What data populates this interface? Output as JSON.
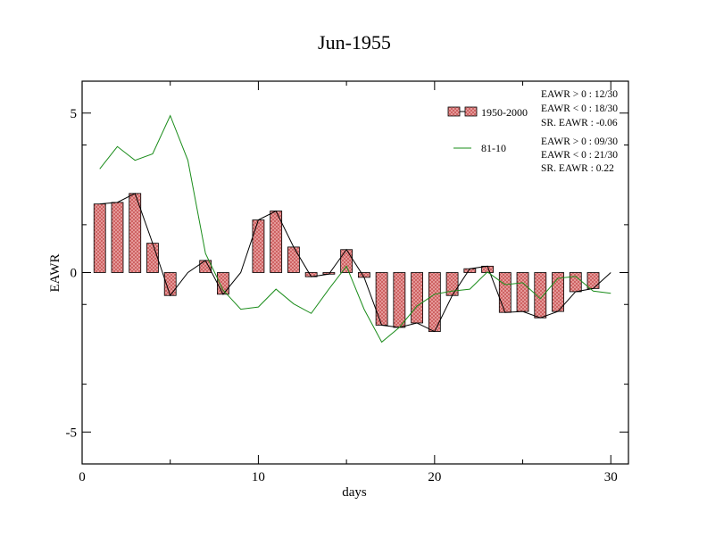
{
  "chart_data": {
    "type": "bar",
    "title": "Jun-1955",
    "xlabel": "days",
    "ylabel": "EAWR",
    "xlim": [
      0,
      31
    ],
    "ylim": [
      -6,
      6
    ],
    "x_ticks": [
      0,
      10,
      20,
      30
    ],
    "y_ticks": [
      -5,
      0,
      5
    ],
    "x_minor_step": 5,
    "y_minor_step": 2.5,
    "grid": false,
    "legend_position": "top-right",
    "colors": {
      "bar_fill": "#e8a0a0",
      "bar_hatch": "#c04040",
      "bar_line": "#000000",
      "line_81_10": "#1a8c1a"
    },
    "series": [
      {
        "name": "1950-2000",
        "kind": "bar+line",
        "x": [
          1,
          2,
          3,
          4,
          5,
          6,
          7,
          8,
          9,
          10,
          11,
          12,
          13,
          14,
          15,
          16,
          17,
          18,
          19,
          20,
          21,
          22,
          23,
          24,
          25,
          26,
          27,
          28,
          29,
          30
        ],
        "values": [
          2.15,
          2.2,
          2.48,
          0.92,
          -0.72,
          0.0,
          0.38,
          -0.68,
          0.0,
          1.65,
          1.93,
          0.8,
          -0.13,
          -0.05,
          0.72,
          -0.15,
          -1.65,
          -1.72,
          -1.58,
          -1.85,
          -0.72,
          0.12,
          0.2,
          -1.25,
          -1.22,
          -1.42,
          -1.22,
          -0.6,
          -0.5,
          0.0
        ]
      },
      {
        "name": "81-10",
        "kind": "line",
        "x": [
          1,
          2,
          3,
          4,
          5,
          6,
          7,
          8,
          9,
          10,
          11,
          12,
          13,
          14,
          15,
          16,
          17,
          18,
          19,
          20,
          21,
          22,
          23,
          24,
          25,
          26,
          27,
          28,
          29,
          30
        ],
        "values": [
          3.25,
          3.95,
          3.52,
          3.72,
          4.92,
          3.52,
          0.6,
          -0.55,
          -1.15,
          -1.08,
          -0.52,
          -0.98,
          -1.28,
          -0.52,
          0.2,
          -1.15,
          -2.18,
          -1.72,
          -1.05,
          -0.68,
          -0.58,
          -0.52,
          0.02,
          -0.38,
          -0.32,
          -0.82,
          -0.18,
          -0.12,
          -0.58,
          -0.65
        ]
      }
    ],
    "annotations": {
      "group1": [
        "EAWR > 0 : 12/30",
        "EAWR < 0 : 18/30",
        "SR. EAWR : -0.06"
      ],
      "group2": [
        "EAWR > 0 : 09/30",
        "EAWR < 0 : 21/30",
        "SR. EAWR :  0.22"
      ]
    }
  }
}
